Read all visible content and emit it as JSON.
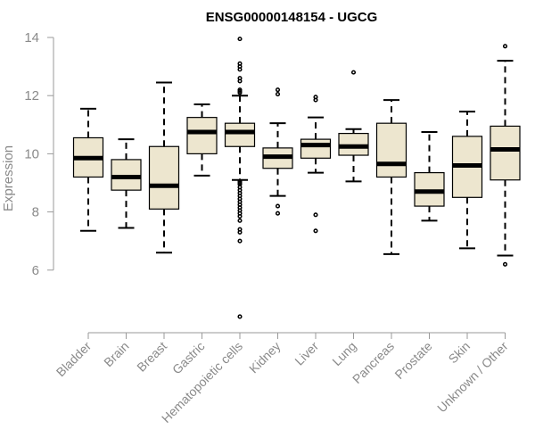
{
  "chart_data": {
    "type": "boxplot",
    "title": "ENSG00000148154 - UGCG",
    "ylabel": "Expression",
    "xlabel": "",
    "ylim": [
      4.0,
      14.0
    ],
    "yticks": [
      6,
      8,
      10,
      12,
      14
    ],
    "grid": false,
    "box_color": "#ede6cf",
    "categories": [
      "Bladder",
      "Brain",
      "Breast",
      "Gastric",
      "Hematopoietic cells",
      "Kidney",
      "Liver",
      "Lung",
      "Pancreas",
      "Prostate",
      "Skin",
      "Unknown / Other"
    ],
    "boxes": [
      {
        "category": "Bladder",
        "q1": 9.2,
        "median": 9.85,
        "q3": 10.55,
        "whisker_low": 7.35,
        "whisker_high": 11.55,
        "outliers": []
      },
      {
        "category": "Brain",
        "q1": 8.75,
        "median": 9.2,
        "q3": 9.8,
        "whisker_low": 7.45,
        "whisker_high": 10.5,
        "outliers": []
      },
      {
        "category": "Breast",
        "q1": 8.1,
        "median": 8.9,
        "q3": 10.25,
        "whisker_low": 6.6,
        "whisker_high": 12.45,
        "outliers": []
      },
      {
        "category": "Gastric",
        "q1": 10.0,
        "median": 10.75,
        "q3": 11.25,
        "whisker_low": 9.25,
        "whisker_high": 11.7,
        "outliers": []
      },
      {
        "category": "Hematopoietic cells",
        "q1": 10.25,
        "median": 10.75,
        "q3": 11.05,
        "whisker_low": 9.1,
        "whisker_high": 12.0,
        "outliers": [
          13.95,
          13.1,
          13.0,
          12.9,
          12.6,
          12.5,
          12.2,
          12.15,
          12.1,
          9.05,
          9.0,
          8.95,
          8.85,
          8.75,
          8.65,
          8.55,
          8.45,
          8.35,
          8.25,
          8.15,
          8.05,
          7.95,
          7.85,
          7.7,
          7.4,
          7.3,
          7.0,
          4.4
        ]
      },
      {
        "category": "Kidney",
        "q1": 9.5,
        "median": 9.9,
        "q3": 10.2,
        "whisker_low": 8.55,
        "whisker_high": 11.05,
        "outliers": [
          12.2,
          12.05,
          8.2,
          7.95
        ]
      },
      {
        "category": "Liver",
        "q1": 9.85,
        "median": 10.3,
        "q3": 10.5,
        "whisker_low": 9.35,
        "whisker_high": 11.25,
        "outliers": [
          11.95,
          11.85,
          7.9,
          7.35
        ]
      },
      {
        "category": "Lung",
        "q1": 9.95,
        "median": 10.25,
        "q3": 10.7,
        "whisker_low": 9.05,
        "whisker_high": 10.85,
        "outliers": [
          12.8
        ]
      },
      {
        "category": "Pancreas",
        "q1": 9.2,
        "median": 9.65,
        "q3": 11.05,
        "whisker_low": 6.55,
        "whisker_high": 11.85,
        "outliers": []
      },
      {
        "category": "Prostate",
        "q1": 8.2,
        "median": 8.7,
        "q3": 9.35,
        "whisker_low": 7.7,
        "whisker_high": 10.75,
        "outliers": []
      },
      {
        "category": "Skin",
        "q1": 8.5,
        "median": 9.6,
        "q3": 10.6,
        "whisker_low": 6.75,
        "whisker_high": 11.45,
        "outliers": []
      },
      {
        "category": "Unknown / Other",
        "q1": 9.1,
        "median": 10.15,
        "q3": 10.95,
        "whisker_low": 6.5,
        "whisker_high": 13.2,
        "outliers": [
          13.7,
          6.2
        ]
      }
    ]
  }
}
